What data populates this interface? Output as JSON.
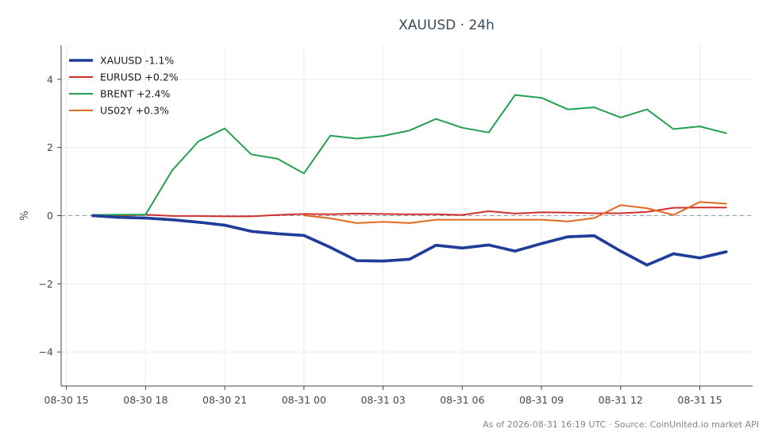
{
  "chart_data": {
    "type": "line",
    "title": "XAUUSD · 24h",
    "xlabel": "",
    "ylabel": "%",
    "ylim": [
      -5,
      5
    ],
    "yticks": [
      -4,
      -2,
      0,
      2,
      4
    ],
    "ytick_labels": [
      "−4",
      "−2",
      "0",
      "2",
      "4"
    ],
    "xlim_hours": [
      -0.2,
      26
    ],
    "x_ticks": [
      {
        "h": 0,
        "label": "08-30 15"
      },
      {
        "h": 3,
        "label": "08-30 18"
      },
      {
        "h": 6,
        "label": "08-30 21"
      },
      {
        "h": 9,
        "label": "08-31 00"
      },
      {
        "h": 12,
        "label": "08-31 03"
      },
      {
        "h": 15,
        "label": "08-31 06"
      },
      {
        "h": 18,
        "label": "08-31 09"
      },
      {
        "h": 21,
        "label": "08-31 12"
      },
      {
        "h": 24,
        "label": "08-31 15"
      }
    ],
    "zero_line": true,
    "grid": true,
    "legend_position": "top-left",
    "series": [
      {
        "name": "XAUUSD -1.1%",
        "color": "#1f3d99",
        "width": 3.5,
        "x": [
          1,
          2,
          3,
          4,
          5,
          6,
          7,
          8,
          9,
          10,
          11,
          12,
          13,
          14,
          15,
          16,
          17,
          18,
          19,
          20,
          21,
          22,
          23,
          24,
          25
        ],
        "y": [
          0.0,
          -0.05,
          -0.07,
          -0.12,
          -0.19,
          -0.28,
          -0.46,
          -0.53,
          -0.58,
          -0.93,
          -1.32,
          -1.33,
          -1.28,
          -0.87,
          -0.95,
          -0.86,
          -1.04,
          -0.82,
          -0.62,
          -0.59,
          -1.04,
          -1.45,
          -1.12,
          -1.24,
          -1.06
        ]
      },
      {
        "name": "EURUSD +0.2%",
        "color": "#d03030",
        "width": 2,
        "x": [
          1,
          2,
          3,
          4,
          5,
          6,
          7,
          8,
          9,
          10,
          11,
          12,
          13,
          14,
          15,
          16,
          17,
          18,
          19,
          20,
          21,
          22,
          23,
          24,
          25
        ],
        "y": [
          0.02,
          0.0,
          0.03,
          -0.01,
          -0.01,
          -0.02,
          -0.02,
          0.02,
          0.05,
          0.04,
          0.06,
          0.05,
          0.04,
          0.04,
          0.02,
          0.13,
          0.06,
          0.1,
          0.09,
          0.07,
          0.07,
          0.11,
          0.23,
          0.24,
          0.24
        ]
      },
      {
        "name": "BRENT +2.4%",
        "color": "#22a050",
        "width": 2,
        "x": [
          1,
          2,
          3,
          4,
          5,
          6,
          7,
          8,
          9,
          10,
          11,
          12,
          13,
          14,
          15,
          16,
          17,
          18,
          19,
          20,
          21,
          22,
          23,
          24,
          25
        ],
        "y": [
          0.02,
          0.03,
          0.03,
          1.32,
          2.18,
          2.56,
          1.8,
          1.67,
          1.24,
          2.35,
          2.26,
          2.34,
          2.5,
          2.84,
          2.58,
          2.44,
          3.54,
          3.46,
          3.12,
          3.18,
          2.88,
          3.12,
          2.54,
          2.62,
          2.42
        ]
      },
      {
        "name": "US02Y +0.3%",
        "color": "#e06a20",
        "width": 2,
        "x": [
          9,
          10,
          11,
          12,
          13,
          14,
          15,
          16,
          17,
          18,
          19,
          20,
          21,
          22,
          23,
          24,
          25
        ],
        "y": [
          0.01,
          -0.08,
          -0.22,
          -0.18,
          -0.22,
          -0.12,
          -0.12,
          -0.12,
          -0.12,
          -0.12,
          -0.17,
          -0.07,
          0.31,
          0.22,
          0.02,
          0.4,
          0.35
        ]
      }
    ]
  },
  "footer": "As of 2026-08-31 16:19 UTC · Source: CoinUnited.io market API"
}
